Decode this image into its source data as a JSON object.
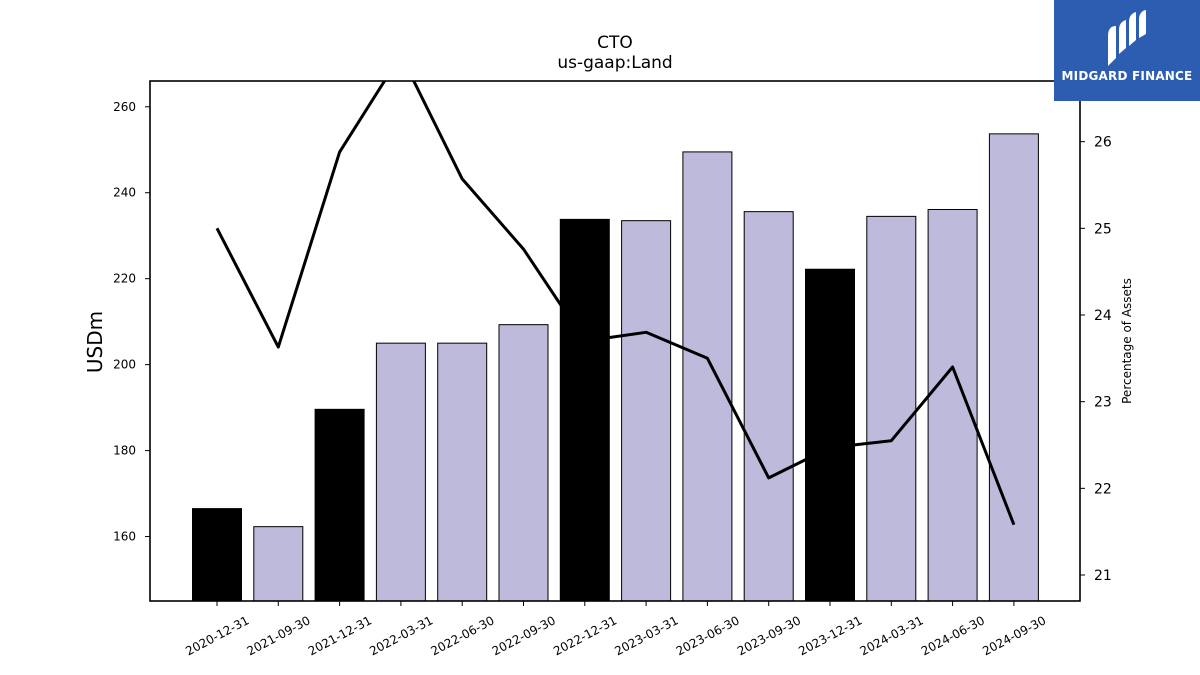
{
  "chart_data": {
    "type": "bar",
    "title": "CTO",
    "subtitle": "us-gaap:Land",
    "ylabel": "USDm",
    "y2label": "Percentage of Assets",
    "ylim": [
      145,
      266
    ],
    "y2lim": [
      20.7,
      26.7
    ],
    "yticks": [
      160,
      180,
      200,
      220,
      240,
      260
    ],
    "y2ticks": [
      21,
      22,
      23,
      24,
      25,
      26
    ],
    "categories": [
      "2020-12-31",
      "2021-09-30",
      "2021-12-31",
      "2022-03-31",
      "2022-06-30",
      "2022-09-30",
      "2022-12-31",
      "2023-03-31",
      "2023-06-30",
      "2023-09-30",
      "2023-12-31",
      "2024-03-31",
      "2024-06-30",
      "2024-09-30"
    ],
    "series": [
      {
        "type": "bar",
        "values": [
          166.5,
          162.3,
          189.6,
          205.0,
          205.0,
          209.3,
          233.8,
          233.5,
          249.5,
          235.6,
          222.2,
          234.5,
          236.1,
          253.7
        ],
        "highlight": [
          true,
          false,
          true,
          false,
          false,
          false,
          true,
          false,
          false,
          false,
          true,
          false,
          false,
          false
        ]
      },
      {
        "type": "line",
        "axis": "right",
        "values": [
          25.0,
          23.63,
          25.88,
          27.0,
          25.57,
          24.76,
          23.7,
          23.8,
          23.5,
          22.12,
          22.47,
          22.55,
          23.4,
          21.58
        ]
      }
    ],
    "colors": {
      "bar": "#bdbadb",
      "bar_highlight": "#000000",
      "line": "#000000"
    },
    "grid": false
  },
  "logo": {
    "text": "MIDGARD FINANCE",
    "background": "#2d5db0"
  }
}
